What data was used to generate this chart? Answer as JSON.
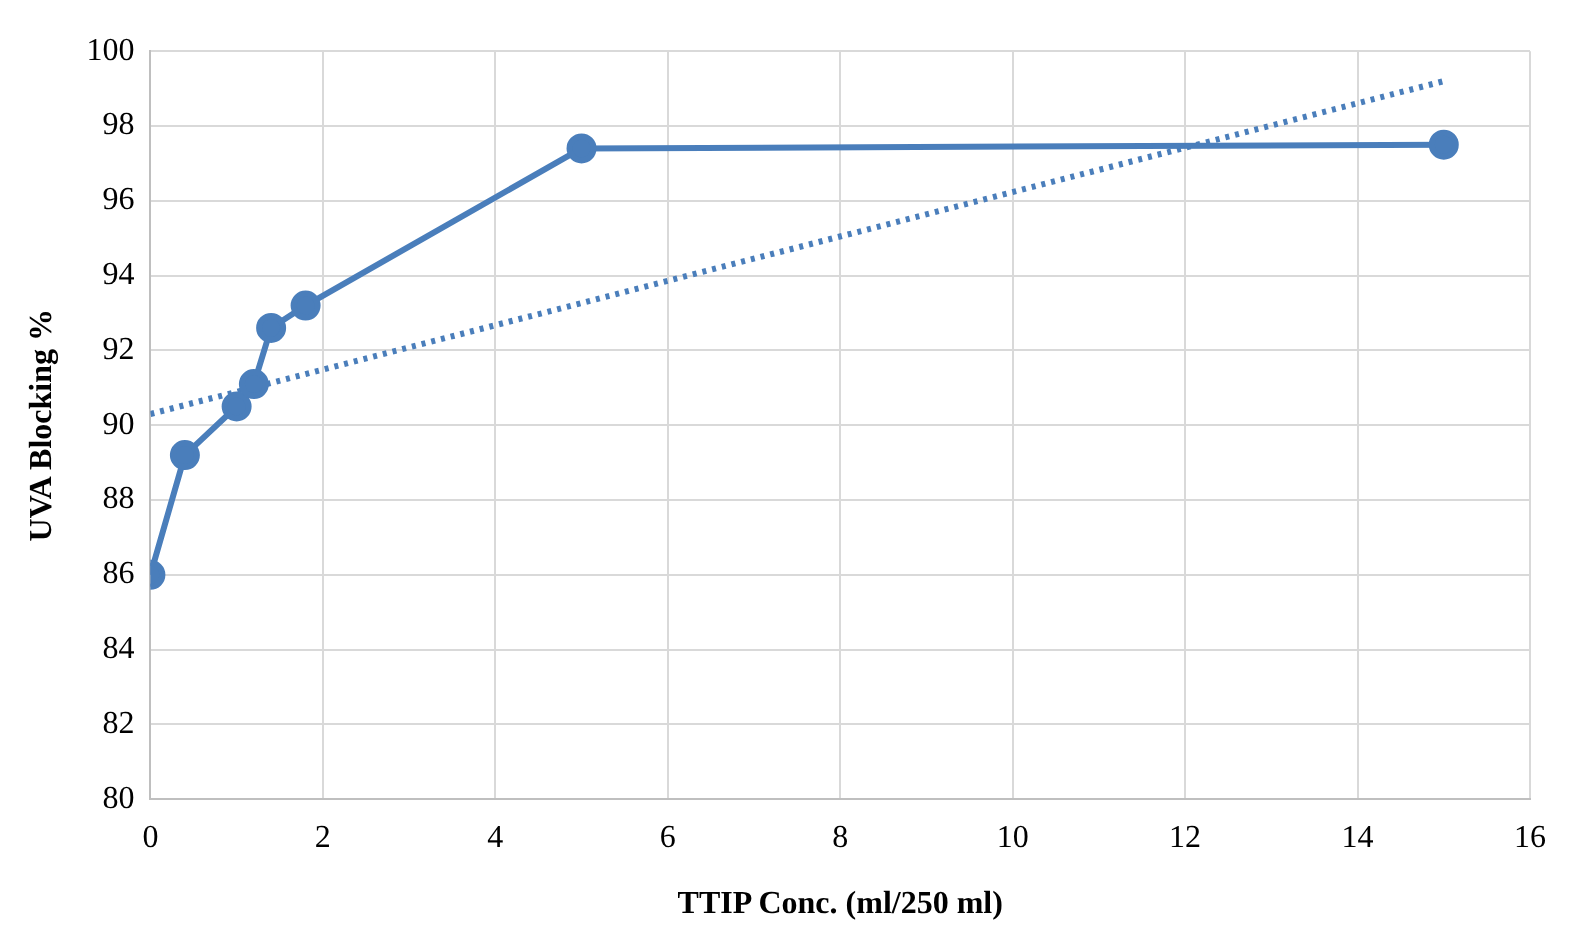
{
  "chart_data": {
    "type": "line",
    "xlabel": "TTIP Conc. (ml/250 ml)",
    "ylabel": "UVA Blocking %",
    "xlim": [
      0,
      16
    ],
    "xticks": [
      0,
      2,
      4,
      6,
      8,
      10,
      12,
      14,
      16
    ],
    "ylim": [
      80,
      100
    ],
    "yticks": [
      80,
      82,
      84,
      86,
      88,
      90,
      92,
      94,
      96,
      98,
      100
    ],
    "grid": true,
    "legend": false,
    "series": [
      {
        "color": "#4a7ebb",
        "marker": "circle",
        "line_style": "solid",
        "x": [
          0,
          0.4,
          1,
          1.2,
          1.4,
          1.8,
          5,
          15
        ],
        "values": [
          86.0,
          89.2,
          90.5,
          91.1,
          92.6,
          93.2,
          97.4,
          97.5
        ]
      },
      {
        "color": "#4a7ebb",
        "marker": "none",
        "line_style": "dotted",
        "x": [
          0,
          15
        ],
        "values": [
          90.3,
          99.2
        ]
      }
    ]
  }
}
